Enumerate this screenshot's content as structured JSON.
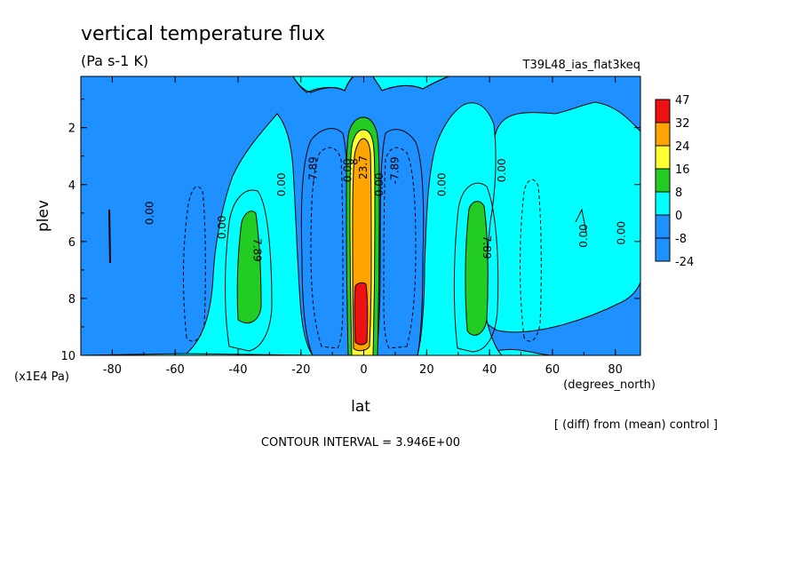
{
  "chart_data": {
    "type": "heatmap",
    "title": "vertical temperature flux",
    "subtitle": "(Pa s-1 K)",
    "run_label": "T39L48_ias_flat3keq",
    "xlabel": "lat",
    "xunits": "(degrees_north)",
    "ylabel": "plev",
    "yunits": "(x1E4 Pa)",
    "note": "[ (diff) from (mean) control ]",
    "contour_interval": "CONTOUR INTERVAL = 3.946E+00",
    "xlim": [
      -90,
      88
    ],
    "ylim": [
      0.2,
      10
    ],
    "y_inverted": true,
    "x_ticks": [
      "-80",
      "-60",
      "-40",
      "-20",
      "0",
      "20",
      "40",
      "60",
      "80"
    ],
    "x_tick_values": [
      -80,
      -60,
      -40,
      -20,
      0,
      20,
      40,
      60,
      80
    ],
    "y_ticks": [
      "2",
      "4",
      "6",
      "8",
      "10"
    ],
    "y_tick_values": [
      2,
      4,
      6,
      8,
      10
    ],
    "colorbar": {
      "labels": [
        "47",
        "32",
        "24",
        "16",
        "8",
        "0",
        "-8",
        "-24"
      ],
      "colors": [
        "#ee1111",
        "#ffa500",
        "#ffff33",
        "#22cc22",
        "#00ffff",
        "#1e90ff"
      ]
    },
    "contour_labels": [
      {
        "text": "0.00",
        "x": -67,
        "y": 5.0,
        "rot": -90
      },
      {
        "text": "0.00",
        "x": -44,
        "y": 5.5,
        "rot": -90
      },
      {
        "text": "7.89",
        "x": -35,
        "y": 6.3,
        "rot": 90
      },
      {
        "text": "0.00",
        "x": -25,
        "y": 4.0,
        "rot": -90
      },
      {
        "text": "-7.89",
        "x": -15,
        "y": 3.5,
        "rot": -90
      },
      {
        "text": "0.00",
        "x": -4,
        "y": 3.5,
        "rot": -90
      },
      {
        "text": "8",
        "x": -2,
        "y": 3.2,
        "rot": -90
      },
      {
        "text": "23.7",
        "x": 1,
        "y": 3.4,
        "rot": -90
      },
      {
        "text": "0.00",
        "x": 6,
        "y": 4.0,
        "rot": -90
      },
      {
        "text": "-7.89",
        "x": 11,
        "y": 3.5,
        "rot": -90
      },
      {
        "text": "0.00",
        "x": 26,
        "y": 4.0,
        "rot": -90
      },
      {
        "text": "7.89",
        "x": 38,
        "y": 6.2,
        "rot": 90
      },
      {
        "text": "0.00",
        "x": 45,
        "y": 3.5,
        "rot": -90
      },
      {
        "text": "0.00",
        "x": 71,
        "y": 5.8,
        "rot": -90
      },
      {
        "text": "0.00",
        "x": 83,
        "y": 5.7,
        "rot": -90
      }
    ]
  }
}
